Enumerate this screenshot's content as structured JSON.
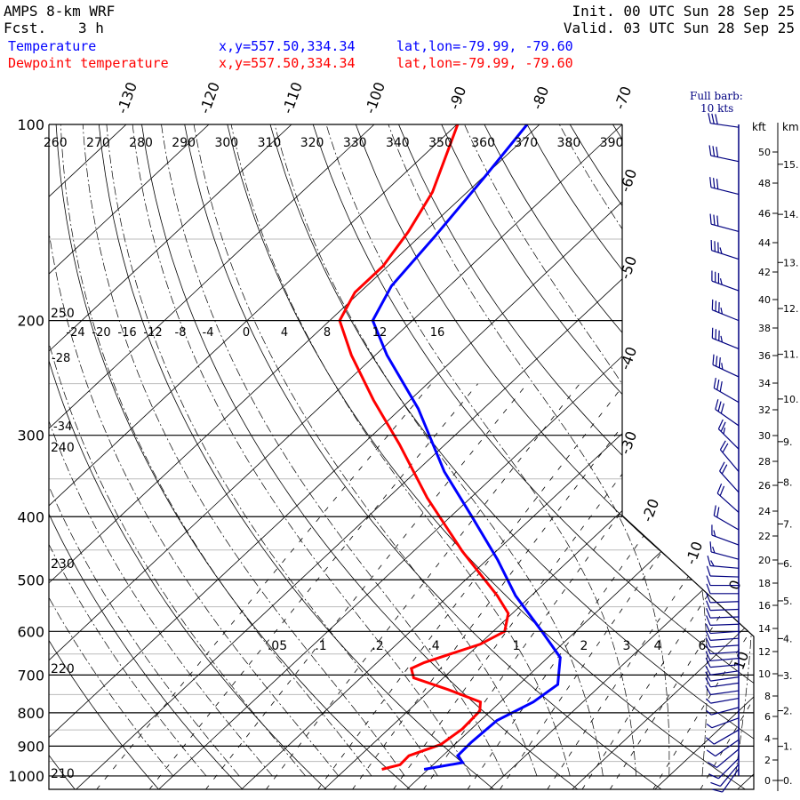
{
  "header": {
    "model": "AMPS 8-km WRF",
    "fcst_label": "Fcst.",
    "fcst_value": "3 h",
    "init": "Init. 00 UTC Sun 28 Sep 25",
    "valid": "Valid. 03 UTC Sun 28 Sep 25"
  },
  "legend": [
    {
      "name": "Temperature",
      "xy": "x,y=557.50,334.34",
      "latlon": "lat,lon=-79.99, -79.60",
      "color": "#0000ff"
    },
    {
      "name": "Dewpoint temperature",
      "xy": "x,y=557.50,334.34",
      "latlon": "lat,lon=-79.99, -79.60",
      "color": "#ff0000"
    }
  ],
  "barb_key": {
    "line1": "Full barb:",
    "line2": "10 kts"
  },
  "height_axis": {
    "kft_label": "kft",
    "km_label": "km",
    "kft_ticks": [
      "0",
      "2",
      "4",
      "6",
      "8",
      "10",
      "12",
      "14",
      "16",
      "18",
      "20",
      "22",
      "24",
      "26",
      "28",
      "30",
      "32",
      "34",
      "36",
      "38",
      "40",
      "42",
      "44",
      "46",
      "48",
      "50"
    ],
    "km_ticks": [
      "0.",
      "1.",
      "2.",
      "3.",
      "4.",
      "5.",
      "6.",
      "7.",
      "8.",
      "9.",
      "10.",
      "11.",
      "12.",
      "13.",
      "14.",
      "15."
    ]
  },
  "chart_data": {
    "type": "line",
    "subtype": "skew-T log-P",
    "ylabel": "Pressure (hPa)",
    "pressure_ticks": [
      "100",
      "200",
      "300",
      "400",
      "500",
      "600",
      "700",
      "800",
      "900",
      "1000"
    ],
    "ylim": [
      1000,
      100
    ],
    "isotherm_labels_top": [
      "-130",
      "-120",
      "-110",
      "-100",
      "-90",
      "-80",
      "-70"
    ],
    "isotherm_labels_right": [
      "-60",
      "-50",
      "-40",
      "-30",
      "-20",
      "-10",
      "0",
      "10"
    ],
    "theta_labels_top": [
      "260",
      "270",
      "280",
      "290",
      "300",
      "310",
      "320",
      "330",
      "340",
      "350",
      "360",
      "370",
      "380",
      "390"
    ],
    "theta_labels_left": [
      "250",
      "240",
      "230",
      "220",
      "210"
    ],
    "moist_labels": [
      "-24",
      "-20",
      "-16",
      "-12",
      "-8",
      "-4",
      "0",
      "4",
      "8",
      "12",
      "16"
    ],
    "moist_labels_left": [
      "-28",
      "-34"
    ],
    "mixing_ratio_labels": [
      ".05",
      ".1",
      ".2",
      ".4",
      "1",
      "2",
      "3",
      "4",
      "6"
    ],
    "series": [
      {
        "name": "Temperature",
        "color": "#0000ff",
        "units": "degC",
        "pressure": [
          100,
          121,
          148,
          177,
          200,
          226,
          273,
          341,
          398,
          466,
          529,
          600,
          658,
          724,
          770,
          822,
          889,
          931,
          954,
          977
        ],
        "values": [
          -81.5,
          -79.8,
          -78.2,
          -77,
          -74.8,
          -68.6,
          -57.9,
          -46.6,
          -37.7,
          -28.7,
          -21.9,
          -14.1,
          -8.5,
          -5.3,
          -6,
          -8,
          -8.3,
          -8.2,
          -6.7,
          -10.5
        ]
      },
      {
        "name": "Dewpoint temperature",
        "color": "#ff0000",
        "units": "degC",
        "pressure": [
          100,
          127,
          146,
          165,
          181,
          200,
          226,
          265,
          310,
          374,
          452,
          529,
          563,
          600,
          628,
          670,
          684,
          707,
          737,
          770,
          795,
          847,
          895,
          931,
          961,
          977
        ],
        "values": [
          -89.9,
          -84.2,
          -82,
          -80.6,
          -80.6,
          -78.8,
          -72.9,
          -64.4,
          -55.5,
          -45.3,
          -34.1,
          -24.1,
          -20.5,
          -18.6,
          -19.9,
          -24.3,
          -25.1,
          -23.6,
          -17.9,
          -12.4,
          -11.3,
          -11.1,
          -11.7,
          -14.1,
          -14,
          -15.6
        ]
      }
    ],
    "wind": [
      {
        "p": 101,
        "dir": 278,
        "spd": 30
      },
      {
        "p": 114,
        "dir": 282,
        "spd": 30
      },
      {
        "p": 128,
        "dir": 284,
        "spd": 30
      },
      {
        "p": 146,
        "dir": 285,
        "spd": 30
      },
      {
        "p": 161,
        "dir": 288,
        "spd": 35
      },
      {
        "p": 180,
        "dir": 290,
        "spd": 35
      },
      {
        "p": 200,
        "dir": 292,
        "spd": 35
      },
      {
        "p": 221,
        "dir": 292,
        "spd": 35
      },
      {
        "p": 244,
        "dir": 295,
        "spd": 35
      },
      {
        "p": 267,
        "dir": 300,
        "spd": 30
      },
      {
        "p": 290,
        "dir": 305,
        "spd": 30
      },
      {
        "p": 315,
        "dir": 315,
        "spd": 25
      },
      {
        "p": 341,
        "dir": 320,
        "spd": 20
      },
      {
        "p": 367,
        "dir": 318,
        "spd": 20
      },
      {
        "p": 394,
        "dir": 312,
        "spd": 20
      },
      {
        "p": 419,
        "dir": 300,
        "spd": 20
      },
      {
        "p": 442,
        "dir": 290,
        "spd": 15
      },
      {
        "p": 465,
        "dir": 285,
        "spd": 15
      },
      {
        "p": 480,
        "dir": 275,
        "spd": 15
      },
      {
        "p": 495,
        "dir": 272,
        "spd": 10
      },
      {
        "p": 510,
        "dir": 270,
        "spd": 10
      },
      {
        "p": 525,
        "dir": 270,
        "spd": 10
      },
      {
        "p": 540,
        "dir": 268,
        "spd": 10
      },
      {
        "p": 555,
        "dir": 268,
        "spd": 10
      },
      {
        "p": 570,
        "dir": 268,
        "spd": 10
      },
      {
        "p": 585,
        "dir": 268,
        "spd": 10
      },
      {
        "p": 600,
        "dir": 266,
        "spd": 10
      },
      {
        "p": 615,
        "dir": 266,
        "spd": 10
      },
      {
        "p": 630,
        "dir": 266,
        "spd": 10
      },
      {
        "p": 645,
        "dir": 266,
        "spd": 10
      },
      {
        "p": 660,
        "dir": 265,
        "spd": 10
      },
      {
        "p": 675,
        "dir": 265,
        "spd": 10
      },
      {
        "p": 690,
        "dir": 262,
        "spd": 10
      },
      {
        "p": 705,
        "dir": 262,
        "spd": 10
      },
      {
        "p": 720,
        "dir": 262,
        "spd": 10
      },
      {
        "p": 740,
        "dir": 262,
        "spd": 10
      },
      {
        "p": 760,
        "dir": 260,
        "spd": 5
      },
      {
        "p": 785,
        "dir": 255,
        "spd": 5
      },
      {
        "p": 815,
        "dir": 250,
        "spd": 5
      },
      {
        "p": 850,
        "dir": 240,
        "spd": 10
      },
      {
        "p": 880,
        "dir": 235,
        "spd": 10
      },
      {
        "p": 910,
        "dir": 230,
        "spd": 10
      },
      {
        "p": 940,
        "dir": 225,
        "spd": 10
      },
      {
        "p": 960,
        "dir": 220,
        "spd": 10
      },
      {
        "p": 975,
        "dir": 215,
        "spd": 10
      }
    ]
  }
}
